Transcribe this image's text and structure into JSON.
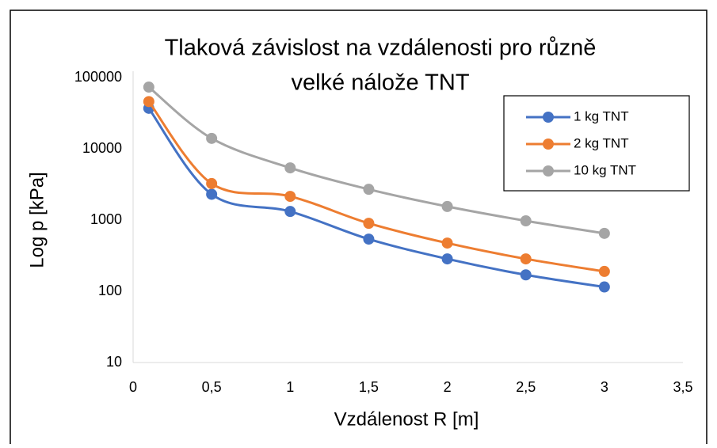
{
  "chart_data": {
    "type": "line",
    "title": [
      "Tlaková závislost na vzdálenosti pro různě",
      "velké nálože TNT"
    ],
    "x_label": "Vzdálenost R [m]",
    "y_label": "Log p [kPa]",
    "x": [
      0.1,
      0.5,
      1,
      1.5,
      2,
      2.5,
      3
    ],
    "series": [
      {
        "name": "1 kg TNT",
        "color": "#4472c4",
        "values": [
          37000,
          2300,
          1320,
          540,
          285,
          170,
          115
        ]
      },
      {
        "name": "2 kg TNT",
        "color": "#ed7d31",
        "values": [
          46000,
          3250,
          2150,
          900,
          475,
          285,
          190
        ]
      },
      {
        "name": "10 kg TNT",
        "color": "#a5a5a5",
        "values": [
          73500,
          14000,
          5400,
          2700,
          1550,
          975,
          650
        ]
      }
    ],
    "xlim": [
      0,
      3.5
    ],
    "xticks": [
      0,
      {
        "value": 0.5,
        "label": "0,5"
      },
      1,
      {
        "value": 1.5,
        "label": "1,5"
      },
      2,
      {
        "value": 2.5,
        "label": "2,5"
      },
      3,
      {
        "value": 3.5,
        "label": "3,5"
      }
    ],
    "ylim": [
      10,
      100000
    ],
    "yticks": [
      10,
      100,
      1000,
      10000,
      100000
    ],
    "log_y": true,
    "grid": false,
    "smooth": true,
    "legend": "top-right"
  }
}
